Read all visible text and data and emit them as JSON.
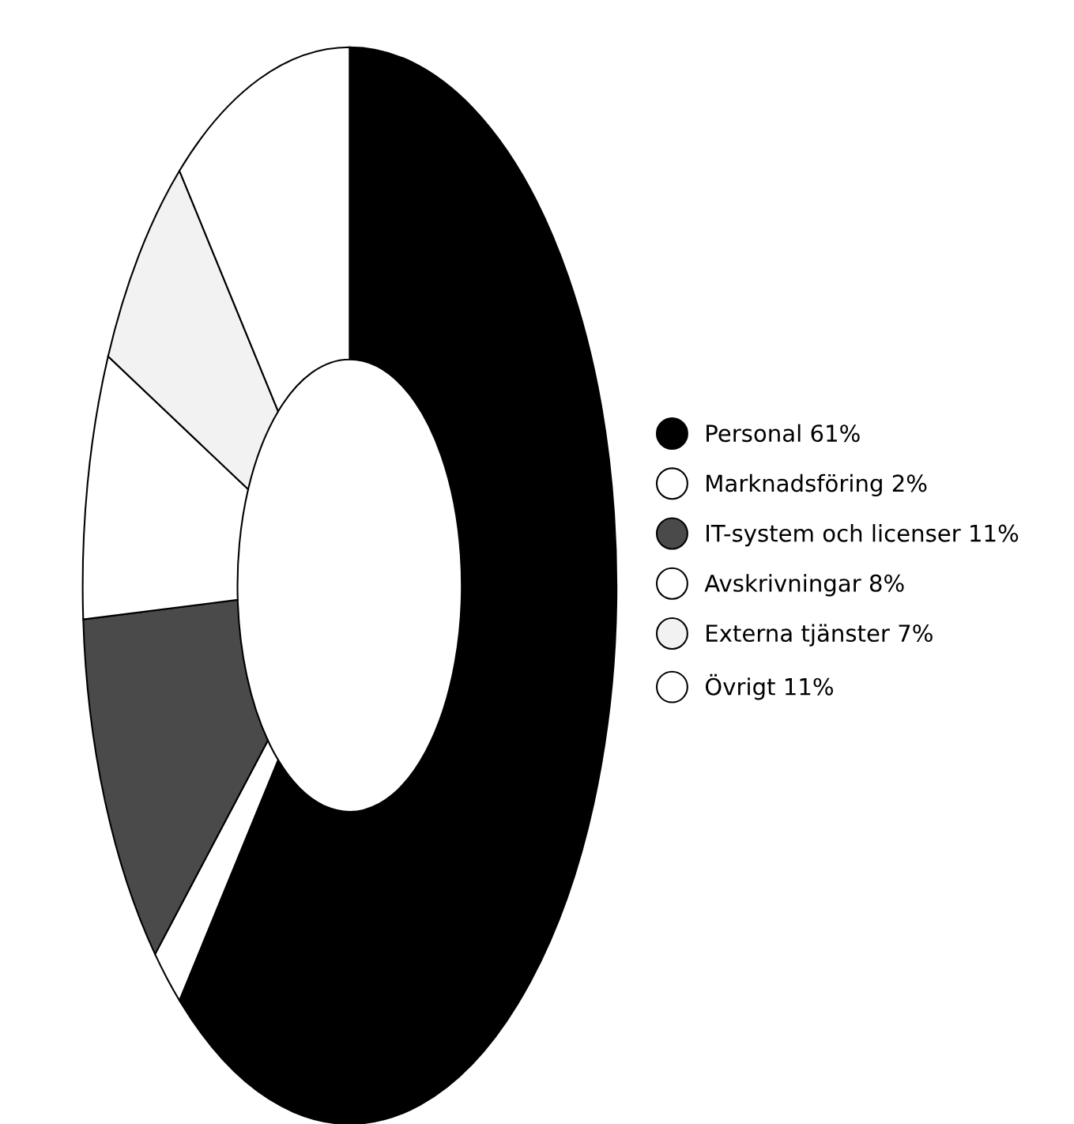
{
  "chart_data": {
    "type": "donut",
    "categories": [
      "Personal 61%",
      "Marknadsföring 2%",
      "IT-system och licenser 11%",
      "Avskrivningar 8%",
      "Externa tjänster 7%",
      "Övrigt 11%"
    ],
    "values": [
      61,
      2,
      11,
      8,
      7,
      11
    ],
    "colors": [
      "#000000",
      "#ffffff",
      "#4a4a4a",
      "#ffffff",
      "#f2f2f2",
      "#ffffff"
    ],
    "legend": "right",
    "marker": "circle"
  }
}
